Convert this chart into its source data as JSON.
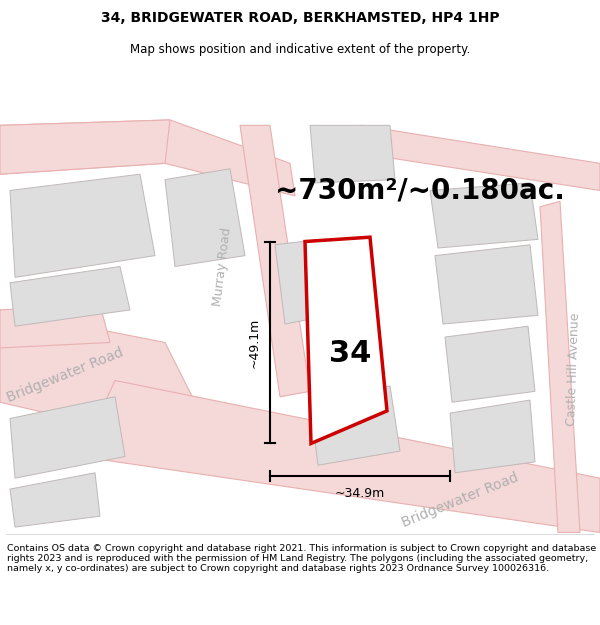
{
  "title_line1": "34, BRIDGEWATER ROAD, BERKHAMSTED, HP4 1HP",
  "title_line2": "Map shows position and indicative extent of the property.",
  "area_label": "~730m²/~0.180ac.",
  "dim_vertical": "~49.1m",
  "dim_horizontal": "~34.9m",
  "plot_number": "34",
  "footer": "Contains OS data © Crown copyright and database right 2021. This information is subject to Crown copyright and database rights 2023 and is reproduced with the permission of HM Land Registry. The polygons (including the associated geometry, namely x, y co-ordinates) are subject to Crown copyright and database rights 2023 Ordnance Survey 100026316.",
  "bg_color": "#ffffff",
  "road_fill": "#f5d8d8",
  "road_edge": "#e8b0b0",
  "building_fill": "#dedede",
  "building_edge": "#c0b8b8",
  "highlight_color": "#cc0000",
  "street_color": "#b0b0b0",
  "dim_color": "#000000",
  "text_color": "#000000",
  "footer_color": "#000000",
  "title_fontsize": 10,
  "subtitle_fontsize": 8.5,
  "area_fontsize": 20,
  "plot_fontsize": 22,
  "dim_fontsize": 9,
  "street_fontsize": 10,
  "footer_fontsize": 6.8
}
